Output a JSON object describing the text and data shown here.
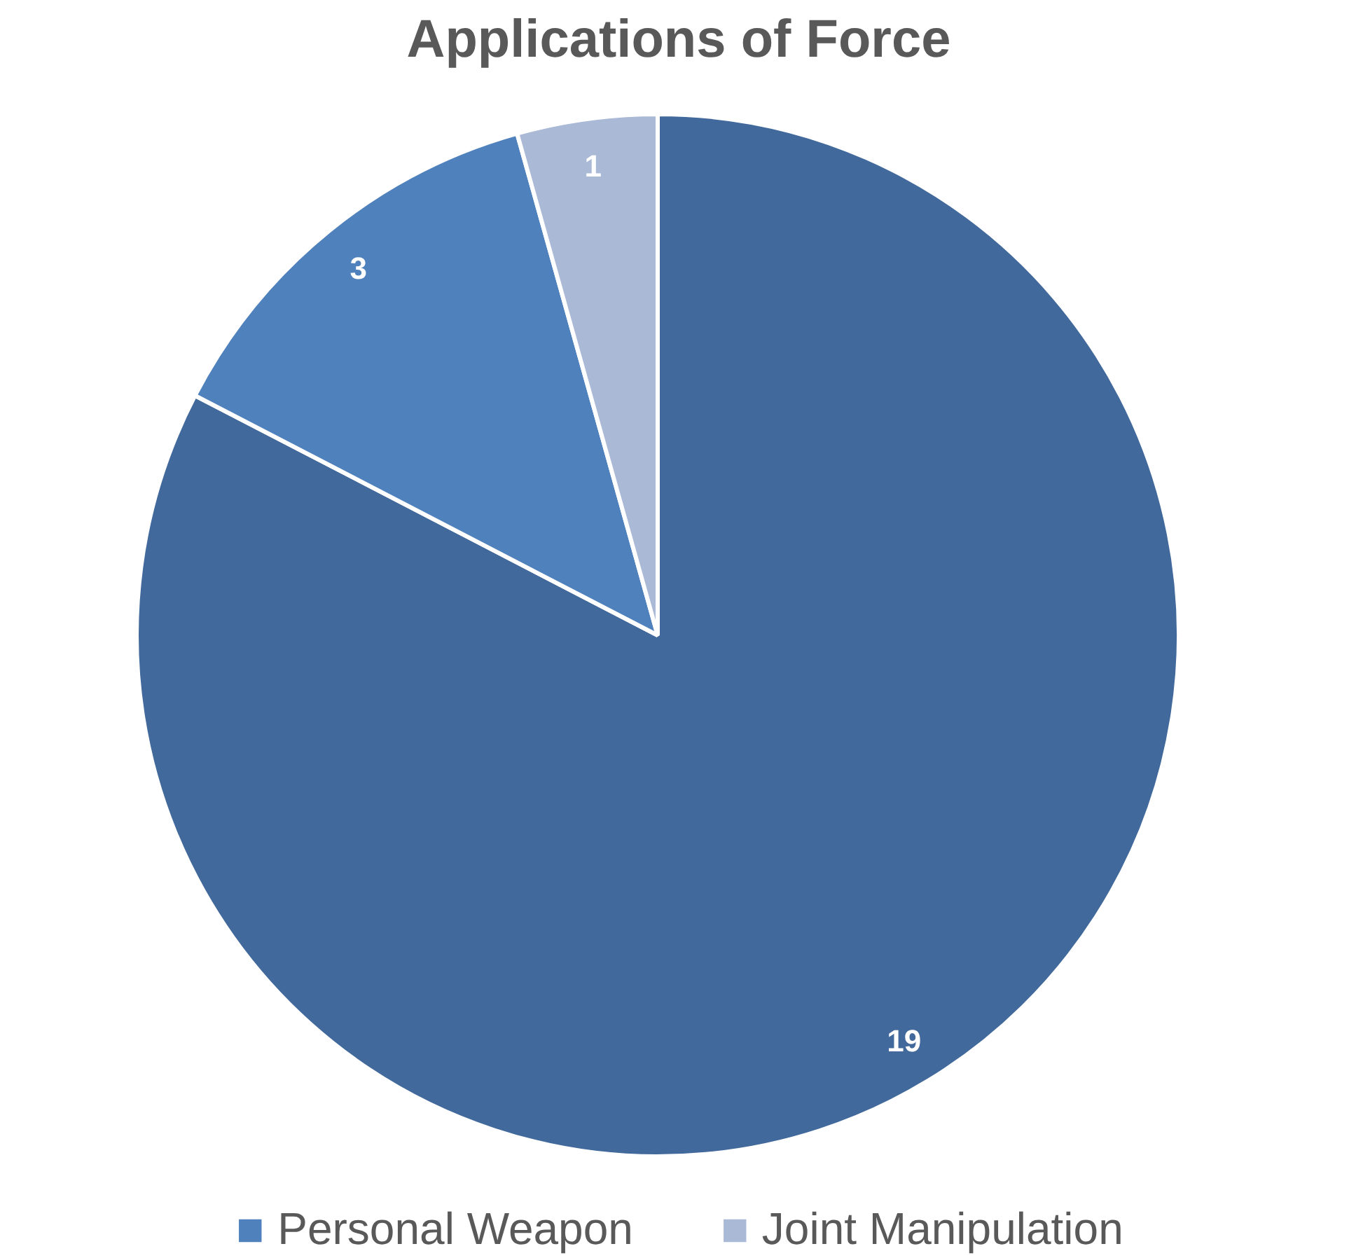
{
  "chart_data": {
    "type": "pie",
    "title": "Applications of Force",
    "categories": [
      null,
      "Personal Weapon",
      "Joint Manipulation"
    ],
    "values": [
      19,
      3,
      1
    ],
    "colors": [
      "#41699b",
      "#4f81bd",
      "#aab9d6"
    ],
    "data_labels": true,
    "legend": "bottom"
  }
}
